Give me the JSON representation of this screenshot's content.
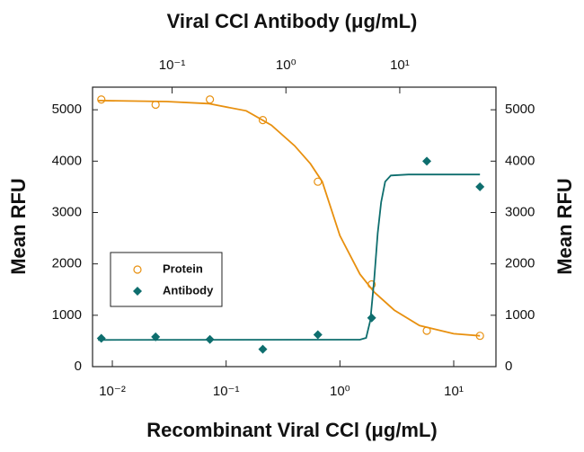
{
  "chart_data": {
    "type": "scatter",
    "title": "Viral CCl Antibody (μg/mL)",
    "xlabel": "Recombinant Viral CCl (μg/mL)",
    "ylabel": "Mean RFU",
    "y2label": "Mean RFU",
    "xscale": "log",
    "xlim": [
      0.0067,
      23.5
    ],
    "xticks": [
      {
        "value": 0.01,
        "label": "10⁻²"
      },
      {
        "value": 0.1,
        "label": "10⁻¹"
      },
      {
        "value": 1,
        "label": "10⁰"
      },
      {
        "value": 10,
        "label": "10¹"
      }
    ],
    "x2lim": [
      0.02,
      70
    ],
    "x2ticks": [
      {
        "value": 0.1,
        "label": "10⁻¹"
      },
      {
        "value": 1,
        "label": "10⁰"
      },
      {
        "value": 10,
        "label": "10¹"
      }
    ],
    "ylim": [
      0,
      5440
    ],
    "yticks": [
      0,
      1000,
      2000,
      3000,
      4000,
      5000
    ],
    "y2lim": [
      0,
      5440
    ],
    "y2ticks": [
      0,
      1000,
      2000,
      3000,
      4000,
      5000
    ],
    "legend": "lower-left",
    "series": [
      {
        "name": "Protein",
        "color": "#e8900f",
        "marker": "circle",
        "x": [
          0.008,
          0.024,
          0.072,
          0.21,
          0.64,
          1.9,
          5.8,
          17
        ],
        "values": [
          5200,
          5100,
          5200,
          4800,
          3600,
          1600,
          700,
          600
        ],
        "fit": {
          "x": [
            0.0075,
            0.03,
            0.07,
            0.15,
            0.25,
            0.4,
            0.55,
            0.7,
            1,
            1.5,
            2,
            3,
            5,
            10,
            17
          ],
          "values": [
            5180,
            5160,
            5120,
            4980,
            4700,
            4300,
            3950,
            3600,
            2550,
            1800,
            1450,
            1100,
            800,
            640,
            600
          ]
        }
      },
      {
        "name": "Antibody",
        "color": "#0e6e6e",
        "marker": "diamond",
        "x": [
          0.008,
          0.024,
          0.072,
          0.21,
          0.64,
          1.9,
          5.8,
          17
        ],
        "values": [
          550,
          580,
          530,
          340,
          620,
          950,
          4000,
          3500
        ],
        "fit": {
          "x": [
            0.0075,
            1.5,
            1.7,
            1.85,
            2.0,
            2.15,
            2.3,
            2.5,
            2.8,
            4,
            17
          ],
          "values": [
            520,
            525,
            560,
            900,
            1700,
            2600,
            3200,
            3600,
            3720,
            3740,
            3740
          ]
        }
      }
    ]
  }
}
